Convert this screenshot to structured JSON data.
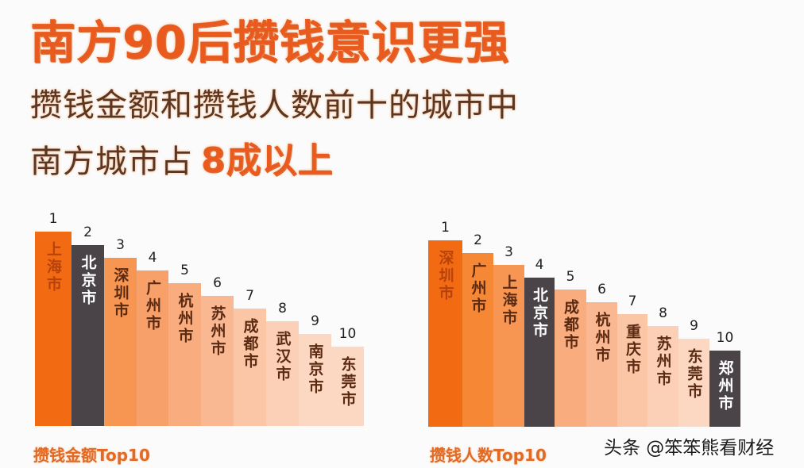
{
  "header": {
    "title": "南方90后攒钱意识更强",
    "subtitle_line1": "攒钱金额和攒钱人数前十的城市中",
    "subtitle_line2_prefix": "南方城市占",
    "subtitle_line2_emphasis": "8成以上"
  },
  "watermark": "头条 @笨笨熊看财经",
  "colors": {
    "accent": "#E95A1E",
    "dark_bar": "#4A4448",
    "gradient": [
      "#F26A12",
      "#F58735",
      "#F79552",
      "#F8A06A",
      "#F9AC7D",
      "#FAB892",
      "#FBC6A6",
      "#FCD0B6",
      "#FCD8C3"
    ]
  },
  "chart_data": [
    {
      "type": "bar",
      "title": "攒钱金额Top10",
      "xlabel": "",
      "ylabel": "",
      "categories": [
        "上海市",
        "北京市",
        "深圳市",
        "广州市",
        "杭州市",
        "苏州市",
        "成都市",
        "武汉市",
        "南京市",
        "东莞市"
      ],
      "ranks": [
        "1",
        "2",
        "3",
        "4",
        "5",
        "6",
        "7",
        "8",
        "9",
        "10"
      ],
      "values": [
        10,
        9,
        8,
        7,
        6,
        5,
        4,
        3,
        2,
        1
      ],
      "value_note": "bars are rank-based stair steps, no numeric axis",
      "highlight": [
        "北京市"
      ],
      "grid": false
    },
    {
      "type": "bar",
      "title": "攒钱人数Top10",
      "xlabel": "",
      "ylabel": "",
      "categories": [
        "深圳市",
        "广州市",
        "上海市",
        "北京市",
        "成都市",
        "杭州市",
        "重庆市",
        "苏州市",
        "东莞市",
        "郑州市"
      ],
      "ranks": [
        "1",
        "2",
        "3",
        "4",
        "5",
        "6",
        "7",
        "8",
        "9",
        "10"
      ],
      "values": [
        10,
        9,
        8,
        7,
        6,
        5,
        4,
        3,
        2,
        1
      ],
      "value_note": "bars are rank-based stair steps, no numeric axis",
      "highlight": [
        "北京市",
        "郑州市"
      ],
      "grid": false
    }
  ]
}
